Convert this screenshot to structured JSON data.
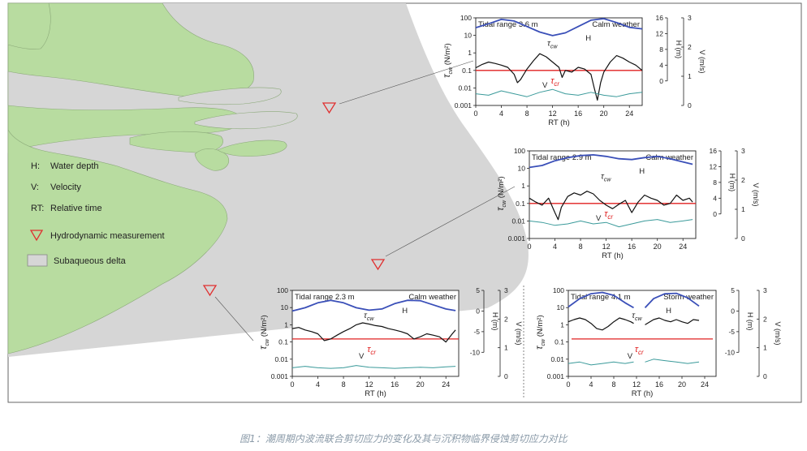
{
  "caption": "图1：潮周期内波流联合剪切应力的变化及其与沉积物临界侵蚀剪切应力对比",
  "legend": {
    "items": [
      {
        "abbr": "H:",
        "text": "Water depth"
      },
      {
        "abbr": "V:",
        "text": "Velocity"
      },
      {
        "abbr": "RT:",
        "text": "Relative time"
      }
    ],
    "measurement": "Hydrodynamic measurement",
    "delta": "Subaqueous delta"
  },
  "colors": {
    "land": "#b8dca0",
    "delta": "#d6d6d6",
    "tau": "#111111",
    "H": "#3a4fb8",
    "V": "#3a9a9a",
    "tau_cr": "#e02020",
    "marker": "#e03030"
  },
  "axis_text": {
    "xlabel": "RT (h)",
    "ylabel_left_main": "τ",
    "ylabel_left_sub": "cw",
    "ylabel_left_unit": "(N/m²)",
    "ylabel_H": "H (m)",
    "ylabel_V": "V (m/s)",
    "tau_cw_label": "τ",
    "tau_cw_sub": "cw",
    "tau_cr_label": "τ",
    "tau_cr_sub": "cr",
    "H_label": "H",
    "V_label": "V"
  },
  "chart_data": [
    {
      "type": "line",
      "id": "p1",
      "title": "Tidal range 3.6 m",
      "weather": "Calm weather",
      "xlim": [
        0,
        26
      ],
      "xticks": [
        0,
        4,
        8,
        12,
        16,
        20,
        24
      ],
      "yticks_left": [
        "100",
        "10",
        "1",
        "0.1",
        "0.01",
        "0.001"
      ],
      "yticks_H": [
        "16",
        "12",
        "8",
        "4",
        "0"
      ],
      "yticks_V": [
        "3",
        "2",
        "1",
        "0"
      ],
      "tau_cr": 0.1,
      "series": [
        {
          "name": "H",
          "x": [
            0,
            2,
            4,
            6,
            8,
            10,
            12,
            14,
            16,
            18,
            20,
            22,
            24,
            26
          ],
          "values": [
            13.5,
            14.5,
            15.6,
            15.2,
            13.8,
            12.4,
            11.5,
            12.2,
            13.8,
            15.4,
            15.8,
            14.8,
            13.6,
            13.2
          ]
        },
        {
          "name": "τcw",
          "x": [
            0,
            1,
            2,
            3,
            4,
            5,
            6,
            6.5,
            7,
            8,
            9,
            10,
            11,
            12,
            13,
            13.5,
            14,
            15,
            16,
            17,
            18,
            18.5,
            19,
            19.5,
            20,
            21,
            22,
            23,
            24,
            25,
            26
          ],
          "values": [
            0.14,
            0.22,
            0.3,
            0.25,
            0.2,
            0.15,
            0.06,
            0.02,
            0.03,
            0.12,
            0.35,
            0.9,
            0.6,
            0.3,
            0.15,
            0.04,
            0.1,
            0.08,
            0.15,
            0.12,
            0.06,
            0.01,
            0.002,
            0.02,
            0.08,
            0.3,
            0.7,
            0.5,
            0.3,
            0.2,
            0.1
          ]
        },
        {
          "name": "V",
          "x": [
            0,
            2,
            4,
            6,
            8,
            10,
            12,
            14,
            16,
            18,
            20,
            22,
            24,
            26
          ],
          "values": [
            0.4,
            0.35,
            0.5,
            0.4,
            0.3,
            0.45,
            0.55,
            0.4,
            0.35,
            0.45,
            0.35,
            0.3,
            0.4,
            0.45
          ]
        }
      ]
    },
    {
      "type": "line",
      "id": "p2",
      "title": "Tidal range 2.9 m",
      "weather": "Calm weather",
      "xlim": [
        0,
        26
      ],
      "xticks": [
        0,
        4,
        8,
        12,
        16,
        20,
        24
      ],
      "yticks_left": [
        "100",
        "10",
        "1",
        "0.1",
        "0.01",
        "0.001"
      ],
      "yticks_H": [
        "16",
        "12",
        "8",
        "4",
        "0"
      ],
      "yticks_V": [
        "3",
        "2",
        "1",
        "0"
      ],
      "tau_cr": 0.1,
      "series": [
        {
          "name": "H",
          "x": [
            0,
            2,
            4,
            6,
            8,
            10,
            12,
            14,
            16,
            18,
            20,
            22,
            24,
            25.5
          ],
          "values": [
            11.8,
            12.3,
            13.5,
            14.3,
            14.8,
            15.0,
            14.6,
            14.0,
            13.8,
            14.3,
            14.6,
            14.0,
            13.2,
            12.6
          ]
        },
        {
          "name": "τcw",
          "x": [
            0,
            1,
            2,
            3,
            4,
            4.5,
            5,
            6,
            7,
            8,
            9,
            10,
            11,
            12,
            13,
            14,
            15,
            16,
            17,
            18,
            19,
            20,
            21,
            22,
            23,
            24,
            25,
            25.5
          ],
          "values": [
            0.2,
            0.12,
            0.08,
            0.2,
            0.03,
            0.012,
            0.06,
            0.25,
            0.4,
            0.3,
            0.5,
            0.35,
            0.15,
            0.08,
            0.05,
            0.09,
            0.15,
            0.03,
            0.12,
            0.3,
            0.2,
            0.15,
            0.08,
            0.1,
            0.3,
            0.15,
            0.2,
            0.12
          ]
        },
        {
          "name": "V",
          "x": [
            0,
            2,
            4,
            6,
            8,
            10,
            12,
            14,
            16,
            18,
            20,
            22,
            24,
            25.5
          ],
          "values": [
            0.6,
            0.55,
            0.45,
            0.5,
            0.6,
            0.5,
            0.55,
            0.4,
            0.5,
            0.6,
            0.65,
            0.55,
            0.6,
            0.65
          ]
        }
      ]
    },
    {
      "type": "line",
      "id": "p3",
      "title": "Tidal range 2.3 m",
      "weather": "Calm weather",
      "xlim": [
        0,
        26
      ],
      "xticks": [
        0,
        4,
        8,
        12,
        16,
        20,
        24
      ],
      "yticks_left": [
        "100",
        "10",
        "1",
        "0.1",
        "0.01",
        "0.001"
      ],
      "yticks_H": [
        "5",
        "0",
        "-5",
        "-10"
      ],
      "yticks_V": [
        "3",
        "2",
        "1",
        "0"
      ],
      "tau_cr": 0.15,
      "series": [
        {
          "name": "H",
          "x": [
            0,
            2,
            4,
            6,
            8,
            10,
            12,
            14,
            16,
            18,
            20,
            22,
            24,
            25.5
          ],
          "values": [
            0.0,
            0.8,
            2.0,
            2.6,
            2.0,
            0.8,
            0.2,
            0.5,
            1.8,
            2.6,
            2.5,
            1.5,
            0.5,
            0.1
          ]
        },
        {
          "name": "τcw",
          "x": [
            0,
            1,
            2,
            3,
            4,
            5,
            6,
            7,
            8,
            9,
            10,
            11,
            12,
            13,
            14,
            15,
            16,
            17,
            18,
            19,
            20,
            21,
            22,
            23,
            24,
            25,
            25.5
          ],
          "values": [
            0.6,
            0.7,
            0.5,
            0.4,
            0.3,
            0.12,
            0.15,
            0.25,
            0.4,
            0.6,
            1.0,
            1.3,
            1.1,
            0.9,
            0.8,
            0.6,
            0.5,
            0.4,
            0.3,
            0.15,
            0.2,
            0.3,
            0.25,
            0.2,
            0.1,
            0.3,
            0.5
          ]
        },
        {
          "name": "V",
          "x": [
            0,
            2,
            4,
            6,
            8,
            10,
            12,
            14,
            16,
            18,
            20,
            22,
            24,
            25.5
          ],
          "values": [
            0.3,
            0.35,
            0.3,
            0.28,
            0.3,
            0.38,
            0.32,
            0.3,
            0.28,
            0.3,
            0.32,
            0.3,
            0.33,
            0.35
          ]
        }
      ]
    },
    {
      "type": "line",
      "id": "p4",
      "title": "Tidal range 4.1 m",
      "weather": "Storm weather",
      "xlim": [
        0,
        26
      ],
      "xticks": [
        0,
        4,
        8,
        12,
        16,
        20,
        24
      ],
      "yticks_left": [
        "100",
        "10",
        "1",
        "0.1",
        "0.01",
        "0.001"
      ],
      "yticks_H": [
        "5",
        "0",
        "-5",
        "-10"
      ],
      "yticks_V": [
        "3",
        "2",
        "1",
        "0"
      ],
      "tau_cr": 0.15,
      "series": [
        {
          "name": "H",
          "segments": [
            {
              "x": [
                0,
                2,
                4,
                6,
                8,
                10,
                11.5
              ],
              "values": [
                1.0,
                3.0,
                4.2,
                4.5,
                3.8,
                2.0,
                0.8
              ]
            },
            {
              "x": [
                13.5,
                15,
                17,
                19,
                21,
                23
              ],
              "values": [
                0.8,
                3.0,
                4.2,
                4.3,
                3.2,
                1.2
              ]
            }
          ]
        },
        {
          "name": "τcw",
          "segments": [
            {
              "x": [
                0,
                1,
                2,
                3,
                4,
                5,
                6,
                7,
                8,
                9,
                10,
                11,
                11.5
              ],
              "values": [
                1.5,
                2.0,
                2.5,
                2.0,
                1.2,
                0.6,
                0.5,
                0.8,
                1.5,
                2.5,
                2.0,
                1.5,
                1.2
              ]
            },
            {
              "x": [
                13.5,
                15,
                16,
                17,
                18,
                19,
                20,
                21,
                22,
                23
              ],
              "values": [
                1.0,
                2.0,
                2.5,
                1.8,
                1.5,
                2.0,
                1.5,
                1.2,
                2.0,
                1.8
              ]
            }
          ]
        },
        {
          "name": "V",
          "segments": [
            {
              "x": [
                0,
                2,
                4,
                6,
                8,
                10,
                11.5
              ],
              "values": [
                0.45,
                0.5,
                0.4,
                0.45,
                0.5,
                0.45,
                0.5
              ]
            },
            {
              "x": [
                13.5,
                15,
                17,
                19,
                21,
                23
              ],
              "values": [
                0.5,
                0.6,
                0.55,
                0.5,
                0.45,
                0.5
              ]
            }
          ]
        }
      ]
    }
  ]
}
